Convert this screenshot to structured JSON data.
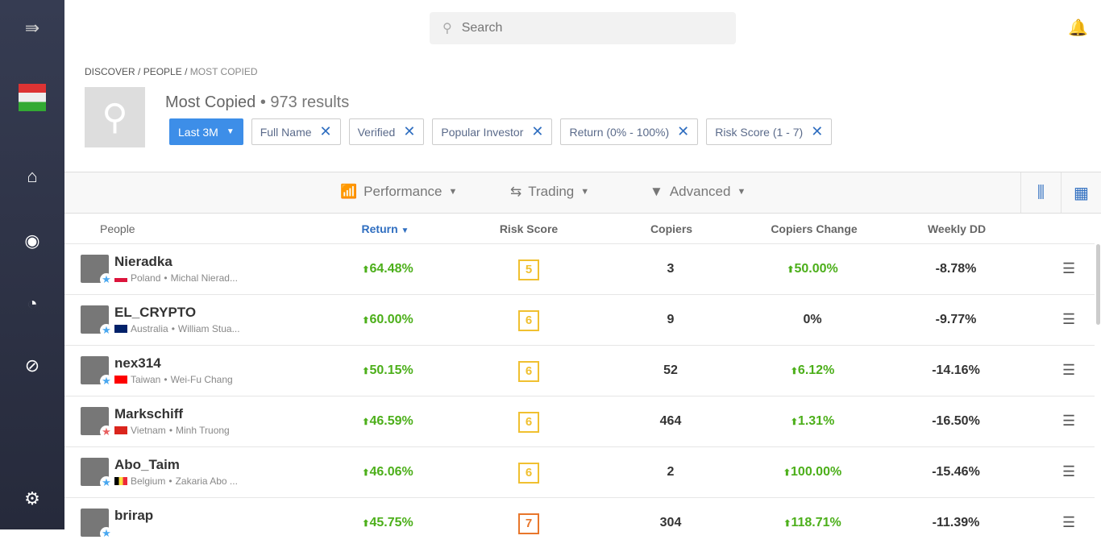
{
  "search": {
    "placeholder": "Search"
  },
  "breadcrumb": [
    "DISCOVER",
    "PEOPLE",
    "MOST COPIED"
  ],
  "header": {
    "title": "Most Copied",
    "results": "• 973 results"
  },
  "filters": [
    {
      "label": "Last 3M",
      "primary": true
    },
    {
      "label": "Full Name"
    },
    {
      "label": "Verified"
    },
    {
      "label": "Popular Investor"
    },
    {
      "label": "Return (0% - 100%)"
    },
    {
      "label": "Risk Score (1 - 7)"
    }
  ],
  "toolbar": {
    "performance": "Performance",
    "trading": "Trading",
    "advanced": "Advanced"
  },
  "columns": {
    "people": "People",
    "return": "Return",
    "risk": "Risk Score",
    "copiers": "Copiers",
    "change": "Copiers Change",
    "weekly": "Weekly DD"
  },
  "rows": [
    {
      "name": "Nieradka",
      "country": "Poland",
      "full": "Michal Nierad...",
      "return": "64.48%",
      "risk": "5",
      "copiers": "3",
      "change": "50.00%",
      "change_up": true,
      "weekly": "-8.78%",
      "star": "#4aa8f0"
    },
    {
      "name": "EL_CRYPTO",
      "country": "Australia",
      "full": "William Stua...",
      "return": "60.00%",
      "risk": "6",
      "copiers": "9",
      "change": "0%",
      "change_up": false,
      "weekly": "-9.77%",
      "star": "#4aa8f0"
    },
    {
      "name": "nex314",
      "country": "Taiwan",
      "full": "Wei-Fu Chang",
      "return": "50.15%",
      "risk": "6",
      "copiers": "52",
      "change": "6.12%",
      "change_up": true,
      "weekly": "-14.16%",
      "star": "#4aa8f0"
    },
    {
      "name": "Markschiff",
      "country": "Vietnam",
      "full": "Minh Truong",
      "return": "46.59%",
      "risk": "6",
      "copiers": "464",
      "change": "1.31%",
      "change_up": true,
      "weekly": "-16.50%",
      "star": "#e86060"
    },
    {
      "name": "Abo_Taim",
      "country": "Belgium",
      "full": "Zakaria Abo ...",
      "return": "46.06%",
      "risk": "6",
      "copiers": "2",
      "change": "100.00%",
      "change_up": true,
      "weekly": "-15.46%",
      "star": "#4aa8f0"
    },
    {
      "name": "brirap",
      "country": "",
      "full": "",
      "return": "45.75%",
      "risk": "7",
      "copiers": "304",
      "change": "118.71%",
      "change_up": true,
      "weekly": "-11.39%",
      "star": "#4aa8f0"
    }
  ]
}
